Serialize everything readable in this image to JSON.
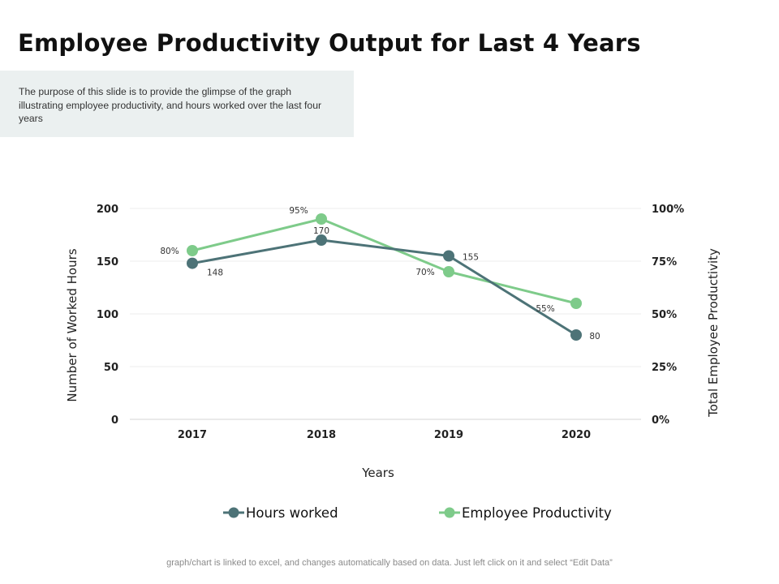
{
  "page": {
    "title": "Employee Productivity Output for Last 4 Years",
    "description": "The purpose  of this slide is to provide  the glimpse of the graph illustrating employee  productivity, and hours worked over  the last four  years",
    "footer": "graph/chart is linked to excel,  and changes automatically based on data. Just left click on it and select “Edit Data”"
  },
  "chart_data": {
    "type": "line",
    "categories": [
      "2017",
      "2018",
      "2019",
      "2020"
    ],
    "xlabel": "Years",
    "ylabel": "Number of Worked Hours",
    "y2label": "Total Employee Productivity",
    "ylim": [
      0,
      200
    ],
    "yticks": [
      "0",
      "50",
      "100",
      "150",
      "200"
    ],
    "y2lim": [
      0,
      100
    ],
    "y2ticks": [
      "0%",
      "25%",
      "50%",
      "75%",
      "100%"
    ],
    "grid": true,
    "legend": "bottom",
    "series": [
      {
        "name": "Hours worked",
        "axis": "left",
        "color": "#4d7377",
        "values": [
          148,
          170,
          155,
          80
        ],
        "labels": [
          "148",
          "170",
          "155",
          "80"
        ]
      },
      {
        "name": "Employee Productivity",
        "axis": "right",
        "color": "#7ecb8a",
        "values": [
          80,
          95,
          70,
          55
        ],
        "labels": [
          "80%",
          "95%",
          "70%",
          "55%"
        ]
      }
    ]
  }
}
